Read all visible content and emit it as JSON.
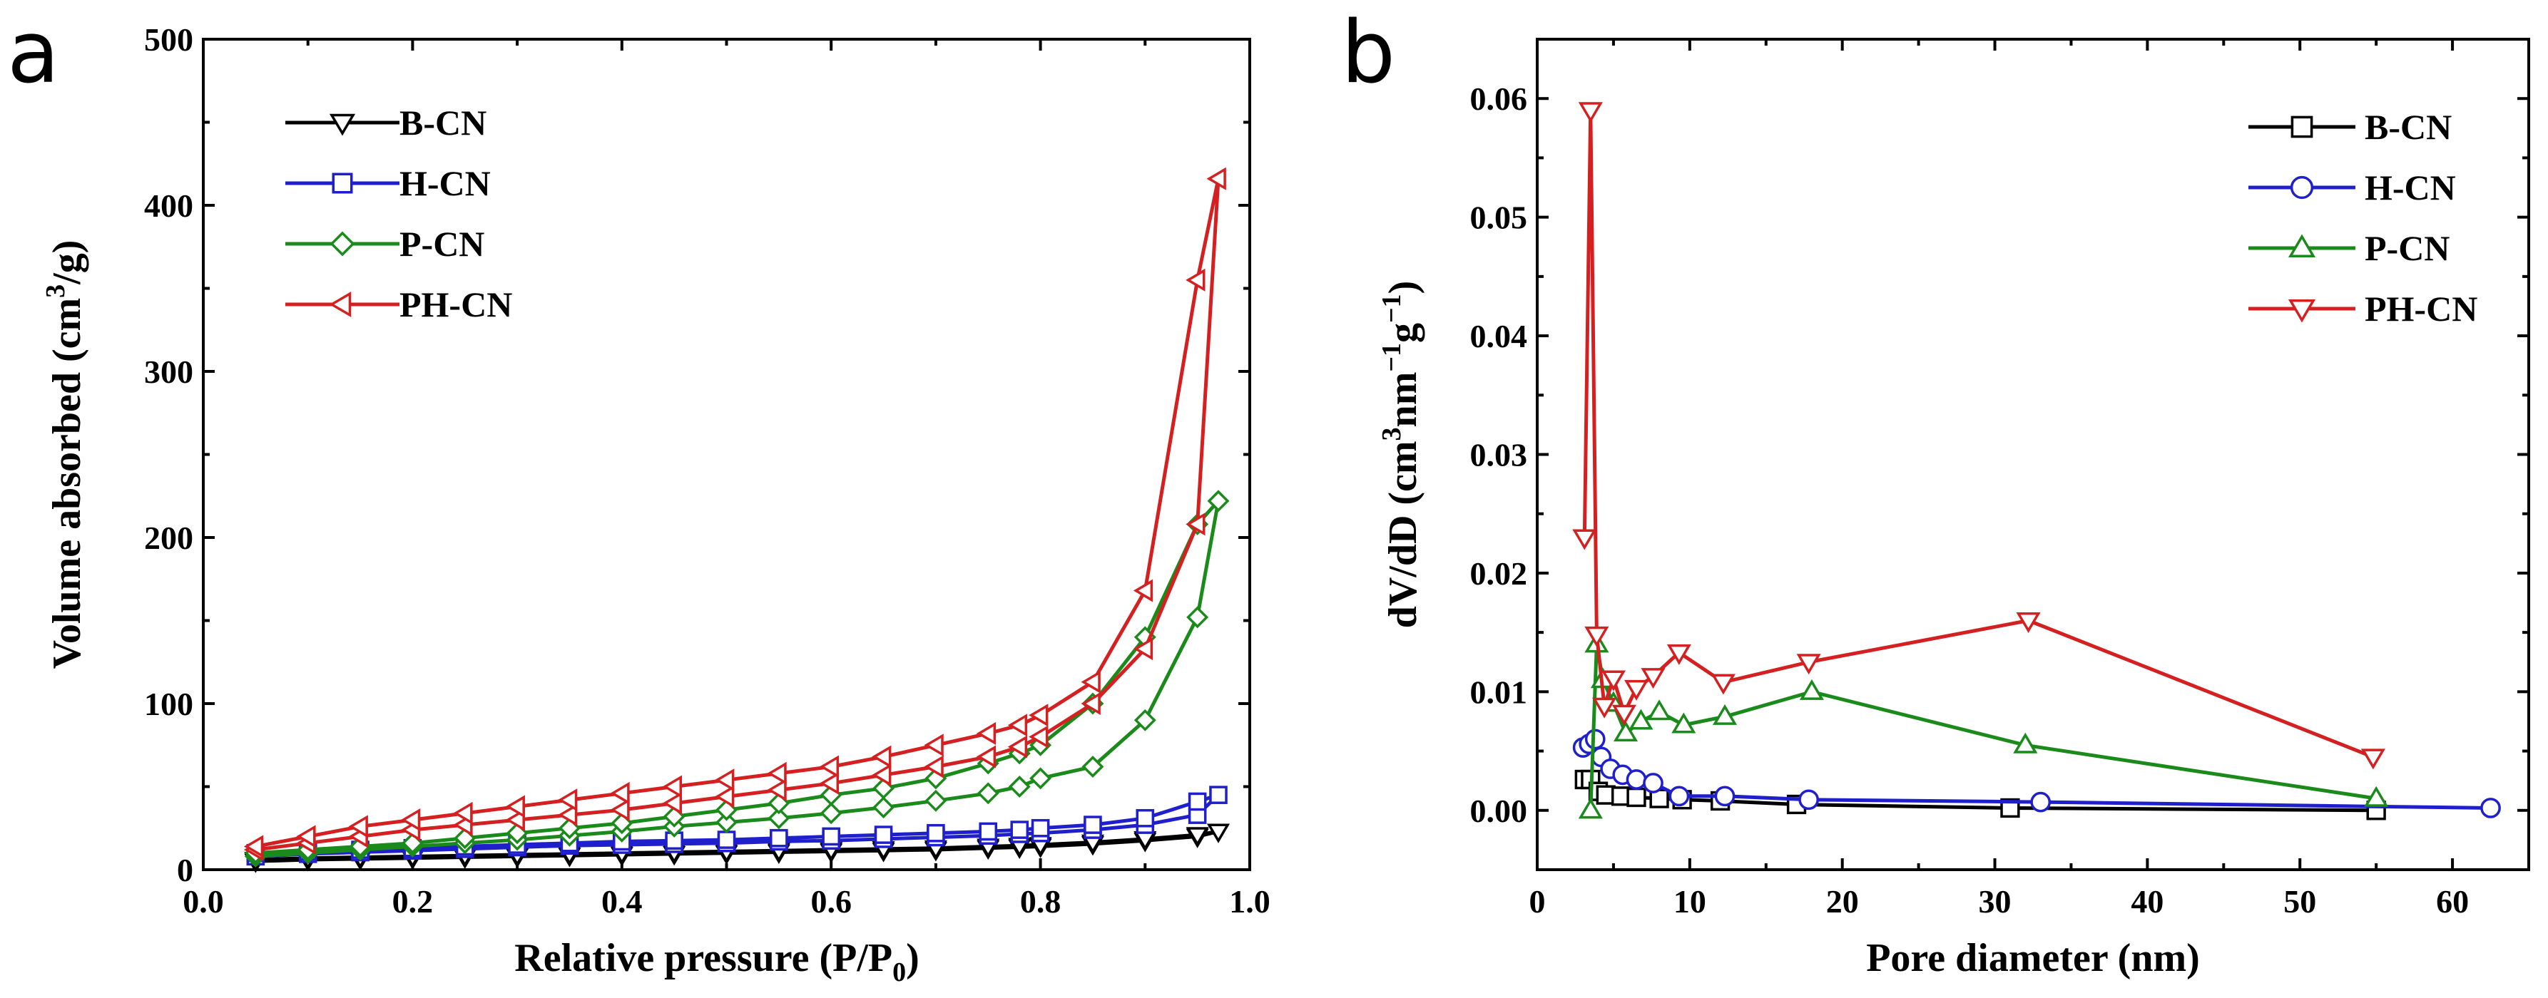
{
  "chart_data": [
    {
      "type": "line",
      "panel_label": "a",
      "xlabel": "Relative pressure (P/P",
      "xlabel_sub": "0",
      "xlabel_end": ")",
      "ylabel": "Volume absorbed (cm",
      "ylabel_sup": "3",
      "ylabel_end": "/g)",
      "xlim": [
        0.0,
        1.0
      ],
      "ylim": [
        0,
        500
      ],
      "xticks": [
        0.0,
        0.2,
        0.4,
        0.6,
        0.8,
        1.0
      ],
      "xtick_labels": [
        "0.0",
        "0.2",
        "0.4",
        "0.6",
        "0.8",
        "1.0"
      ],
      "yticks": [
        0,
        100,
        200,
        300,
        400,
        500
      ],
      "ytick_labels": [
        "0",
        "100",
        "200",
        "300",
        "400",
        "500"
      ],
      "legend_position": "top-left",
      "series": [
        {
          "name": "B-CN",
          "color": "#000000",
          "marker": "triangle-down",
          "x": [
            0.05,
            0.1,
            0.15,
            0.2,
            0.25,
            0.3,
            0.35,
            0.4,
            0.45,
            0.5,
            0.55,
            0.6,
            0.65,
            0.7,
            0.75,
            0.78,
            0.8,
            0.85,
            0.9,
            0.95,
            0.97,
            0.95,
            0.9,
            0.85,
            0.8,
            0.78,
            0.75,
            0.7,
            0.65,
            0.6,
            0.55,
            0.5,
            0.45,
            0.4,
            0.35,
            0.3,
            0.25,
            0.2,
            0.15,
            0.1,
            0.05
          ],
          "y": [
            5,
            6,
            6.5,
            7,
            7.5,
            8,
            8.5,
            9,
            9.5,
            10,
            10.5,
            11,
            11.5,
            12,
            13,
            13.5,
            14,
            15.5,
            17.5,
            20,
            23,
            21,
            18.5,
            16.5,
            15,
            14.5,
            14,
            13,
            12.5,
            12,
            11.5,
            11,
            10.5,
            10,
            9.5,
            9,
            8.5,
            8,
            7.5,
            7,
            6
          ]
        },
        {
          "name": "H-CN",
          "color": "#1f1fcc",
          "marker": "square",
          "x": [
            0.05,
            0.1,
            0.15,
            0.2,
            0.25,
            0.3,
            0.35,
            0.4,
            0.45,
            0.5,
            0.55,
            0.6,
            0.65,
            0.7,
            0.75,
            0.78,
            0.8,
            0.85,
            0.9,
            0.95,
            0.97,
            0.95,
            0.9,
            0.85,
            0.8,
            0.78,
            0.75,
            0.7,
            0.65,
            0.6,
            0.55,
            0.5,
            0.45,
            0.4,
            0.35,
            0.3,
            0.25,
            0.2,
            0.15,
            0.1,
            0.05
          ],
          "y": [
            8,
            9.5,
            10.5,
            11.5,
            12.5,
            13.5,
            14.5,
            15,
            15.5,
            16,
            17,
            17.5,
            18.5,
            19.5,
            20.5,
            21.5,
            22,
            24,
            27,
            33,
            45,
            41,
            31,
            27,
            25,
            24,
            23,
            22,
            21,
            20,
            19,
            18,
            17.5,
            17,
            16,
            15,
            14,
            13,
            12,
            11,
            10
          ]
        },
        {
          "name": "P-CN",
          "color": "#1a8a1a",
          "marker": "diamond",
          "x": [
            0.05,
            0.1,
            0.15,
            0.2,
            0.25,
            0.3,
            0.35,
            0.4,
            0.45,
            0.5,
            0.55,
            0.6,
            0.65,
            0.7,
            0.75,
            0.78,
            0.8,
            0.85,
            0.9,
            0.95,
            0.97,
            0.95,
            0.9,
            0.85,
            0.8,
            0.78,
            0.75,
            0.7,
            0.65,
            0.6,
            0.55,
            0.5,
            0.45,
            0.4,
            0.35,
            0.3,
            0.25,
            0.2,
            0.15,
            0.1,
            0.05
          ],
          "y": [
            8,
            10,
            12,
            14,
            16,
            18,
            20.5,
            23,
            26,
            28.5,
            31,
            34,
            37.5,
            41.5,
            46,
            50,
            55,
            62,
            90,
            152,
            222,
            208,
            140,
            100,
            75,
            70,
            64,
            55,
            49,
            45,
            40,
            36,
            32,
            28,
            25,
            22,
            19,
            16,
            14,
            12,
            10
          ]
        },
        {
          "name": "PH-CN",
          "color": "#d42020",
          "marker": "triangle-left",
          "x": [
            0.05,
            0.1,
            0.15,
            0.2,
            0.25,
            0.3,
            0.35,
            0.4,
            0.45,
            0.5,
            0.55,
            0.6,
            0.65,
            0.7,
            0.75,
            0.78,
            0.8,
            0.85,
            0.9,
            0.95,
            0.97,
            0.95,
            0.9,
            0.85,
            0.8,
            0.78,
            0.75,
            0.7,
            0.65,
            0.6,
            0.55,
            0.5,
            0.45,
            0.4,
            0.35,
            0.3,
            0.25,
            0.2,
            0.15,
            0.1,
            0.05
          ],
          "y": [
            12,
            16,
            20,
            24,
            27,
            30,
            33,
            36,
            40,
            44,
            48,
            52,
            57,
            62,
            68,
            74,
            80,
            100,
            133,
            208,
            416,
            355,
            168,
            113,
            93,
            87,
            82,
            75,
            68,
            62,
            58,
            54,
            50,
            46,
            42,
            38,
            34,
            30,
            26,
            20,
            14
          ]
        }
      ]
    },
    {
      "type": "line",
      "panel_label": "b",
      "xlabel": "Pore diameter (nm)",
      "ylabel_parts": [
        "dV/dD (cm",
        "3",
        "nm",
        "−1",
        "g",
        "−1",
        ")"
      ],
      "xlim": [
        0,
        65
      ],
      "ylim": [
        -0.005,
        0.065
      ],
      "xticks": [
        0,
        10,
        20,
        30,
        40,
        50,
        60
      ],
      "xtick_labels": [
        "0",
        "10",
        "20",
        "30",
        "40",
        "50",
        "60"
      ],
      "yticks": [
        0.0,
        0.01,
        0.02,
        0.03,
        0.04,
        0.05,
        0.06
      ],
      "ytick_labels": [
        "0.00",
        "0.01",
        "0.02",
        "0.03",
        "0.04",
        "0.05",
        "0.06"
      ],
      "legend_position": "top-right",
      "series": [
        {
          "name": "B-CN",
          "color": "#000000",
          "marker": "square",
          "x": [
            3.1,
            3.5,
            4.0,
            4.5,
            5.5,
            6.5,
            8.0,
            9.5,
            12,
            17,
            31,
            55
          ],
          "y": [
            0.0026,
            0.0026,
            0.0016,
            0.0013,
            0.0012,
            0.0011,
            0.001,
            0.0009,
            0.0008,
            0.0005,
            0.0002,
            0.0
          ]
        },
        {
          "name": "H-CN",
          "color": "#1f1fcc",
          "marker": "circle",
          "x": [
            3.0,
            3.4,
            3.8,
            4.2,
            4.8,
            5.6,
            6.5,
            7.6,
            9.3,
            12.3,
            17.8,
            33,
            62.5
          ],
          "y": [
            0.0053,
            0.0056,
            0.006,
            0.0045,
            0.0035,
            0.003,
            0.0026,
            0.0023,
            0.0012,
            0.0012,
            0.0009,
            0.0007,
            0.0002
          ]
        },
        {
          "name": "P-CN",
          "color": "#1a8a1a",
          "marker": "triangle-up",
          "x": [
            3.5,
            3.9,
            4.3,
            5.0,
            5.8,
            6.8,
            8.0,
            9.6,
            12.3,
            18,
            32,
            55
          ],
          "y": [
            0.0,
            0.014,
            0.011,
            0.009,
            0.0065,
            0.0075,
            0.0083,
            0.0072,
            0.0079,
            0.01,
            0.0055,
            0.001
          ]
        },
        {
          "name": "PH-CN",
          "color": "#d42020",
          "marker": "triangle-down",
          "x": [
            3.1,
            3.5,
            3.9,
            4.4,
            5.0,
            5.7,
            6.5,
            7.6,
            9.3,
            12.2,
            17.8,
            32.2,
            54.8
          ],
          "y": [
            0.023,
            0.059,
            0.0148,
            0.0088,
            0.0111,
            0.0082,
            0.0103,
            0.0113,
            0.0133,
            0.0108,
            0.0125,
            0.016,
            0.0045
          ]
        }
      ]
    }
  ]
}
